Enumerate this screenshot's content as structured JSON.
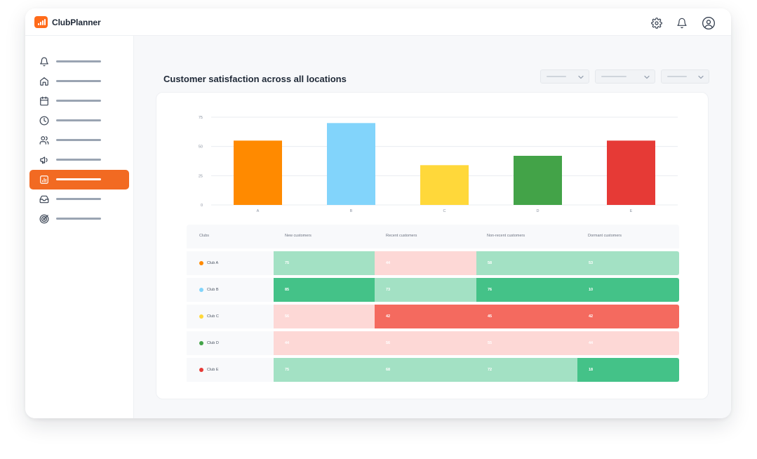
{
  "app": {
    "name": "ClubPlanner"
  },
  "page": {
    "title": "Customer satisfaction across all locations"
  },
  "colors": {
    "accent": "#f26a22",
    "light_green": "#a3e1c4",
    "green": "#44c288",
    "light_red": "#fdd8d6",
    "red": "#f46a5f"
  },
  "sidebar": {
    "items": [
      {
        "icon": "bell-icon",
        "active": false
      },
      {
        "icon": "home-icon",
        "active": false
      },
      {
        "icon": "calendar-icon",
        "active": false
      },
      {
        "icon": "clock-icon",
        "active": false
      },
      {
        "icon": "users-icon",
        "active": false
      },
      {
        "icon": "megaphone-icon",
        "active": false
      },
      {
        "icon": "chart-icon",
        "active": true
      },
      {
        "icon": "inbox-icon",
        "active": false
      },
      {
        "icon": "target-icon",
        "active": false
      }
    ]
  },
  "chart_data": {
    "type": "bar",
    "categories": [
      "A",
      "B",
      "C",
      "D",
      "E"
    ],
    "values": [
      55,
      70,
      34,
      42,
      55
    ],
    "colors": [
      "#ff8a00",
      "#82d4fb",
      "#ffd83a",
      "#43a348",
      "#e63a36"
    ],
    "yticks": [
      0,
      25,
      50,
      75
    ],
    "ylim": [
      0,
      75
    ],
    "grid": true
  },
  "table": {
    "headers": [
      "Clubs",
      "New customers",
      "Recent customers",
      "Non-recent customers",
      "Dormant customers"
    ],
    "rows": [
      {
        "club": "Club A",
        "dot": "#ff8a00",
        "values": [
          "75",
          "44",
          "58",
          "53"
        ],
        "shades": [
          "light_green",
          "light_red",
          "light_green",
          "light_green"
        ]
      },
      {
        "club": "Club B",
        "dot": "#82d4fb",
        "values": [
          "85",
          "73",
          "76",
          "10"
        ],
        "shades": [
          "green",
          "light_green",
          "green",
          "green"
        ]
      },
      {
        "club": "Club C",
        "dot": "#ffd83a",
        "values": [
          "56",
          "42",
          "45",
          "42"
        ],
        "shades": [
          "light_red",
          "red",
          "red",
          "red"
        ]
      },
      {
        "club": "Club D",
        "dot": "#43a348",
        "values": [
          "44",
          "56",
          "55",
          "44"
        ],
        "shades": [
          "light_red",
          "light_red",
          "light_red",
          "light_red"
        ]
      },
      {
        "club": "Club E",
        "dot": "#e63a36",
        "values": [
          "75",
          "68",
          "72",
          "18"
        ],
        "shades": [
          "light_green",
          "light_green",
          "light_green",
          "green"
        ]
      }
    ]
  }
}
